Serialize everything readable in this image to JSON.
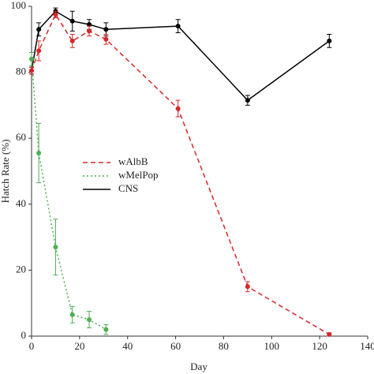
{
  "chart_data": {
    "type": "line",
    "xlabel": "Day",
    "ylabel": "Hatch Rate (%)",
    "xlim": [
      0,
      140
    ],
    "xticks": [
      0,
      20,
      40,
      60,
      80,
      100,
      120,
      140
    ],
    "ylim": [
      0,
      100
    ],
    "yticks": [
      0,
      20,
      40,
      60,
      80,
      100
    ],
    "series": [
      {
        "name": "wAlbB",
        "color": "#d62728",
        "linestyle": "dashed",
        "x": [
          0,
          3,
          10,
          17,
          24,
          31,
          61,
          90,
          124
        ],
        "values": [
          80.5,
          86.5,
          97.5,
          89.5,
          92.5,
          90,
          69,
          15,
          0.5
        ],
        "errors": [
          1,
          3,
          1,
          2,
          1.5,
          1.5,
          2.5,
          1.5,
          0.5
        ]
      },
      {
        "name": "wMelPop",
        "color": "#4caf50",
        "linestyle": "dotted",
        "x": [
          0,
          3,
          10,
          17,
          24,
          31
        ],
        "values": [
          84,
          55.5,
          27,
          6.5,
          5,
          2
        ],
        "errors": [
          2,
          9,
          8.5,
          2.5,
          2.5,
          1.5
        ]
      },
      {
        "name": "CNS",
        "color": "#000000",
        "linestyle": "solid",
        "x": [
          0,
          3,
          10,
          17,
          24,
          31,
          61,
          90,
          124
        ],
        "values": [
          80.5,
          93,
          98.5,
          95.5,
          94.5,
          93,
          94,
          71.5,
          89.5
        ],
        "errors": [
          1,
          2,
          1,
          3,
          1.5,
          2,
          2,
          1.5,
          2
        ]
      }
    ]
  }
}
